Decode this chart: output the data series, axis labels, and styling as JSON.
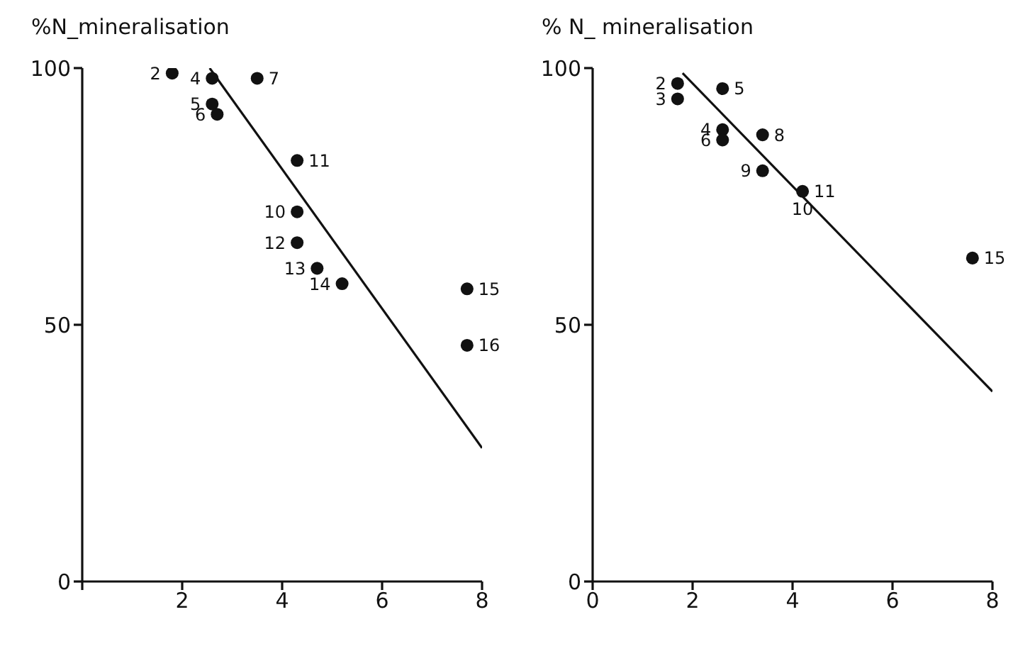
{
  "chart_data": [
    {
      "type": "scatter",
      "ylabel": "%N_mineralisation",
      "xlim": [
        0,
        8
      ],
      "ylim": [
        0,
        100
      ],
      "xticks": [
        {
          "value": 0,
          "label": null
        },
        2,
        4,
        6,
        8
      ],
      "yticks": [
        0,
        50,
        100
      ],
      "grid": false,
      "legend": false,
      "marker": "circle",
      "series": [
        {
          "color": "#111111",
          "x": [
            1.8,
            2.6,
            3.5,
            2.6,
            2.7,
            4.3,
            4.3,
            4.3,
            4.7,
            5.2,
            7.7,
            7.7
          ],
          "values": [
            99,
            98,
            98,
            93,
            91,
            82,
            72,
            66,
            61,
            58,
            57,
            46
          ]
        },
        {
          "type": "line",
          "color": "#111111",
          "line_style": "solid",
          "marker": "none",
          "x": [
            2.55,
            8
          ],
          "values": [
            100,
            26
          ]
        }
      ],
      "annotations": [
        {
          "text": "2",
          "x": 1.8,
          "y": 99
        },
        {
          "text": "4",
          "x": 2.6,
          "y": 98
        },
        {
          "text": "7",
          "x": 3.5,
          "y": 98
        },
        {
          "text": "5",
          "x": 2.6,
          "y": 93
        },
        {
          "text": "6",
          "x": 2.7,
          "y": 91
        },
        {
          "text": "11",
          "x": 4.3,
          "y": 82
        },
        {
          "text": "10",
          "x": 4.3,
          "y": 72
        },
        {
          "text": "12",
          "x": 4.3,
          "y": 66
        },
        {
          "text": "13",
          "x": 4.7,
          "y": 61
        },
        {
          "text": "14",
          "x": 5.2,
          "y": 58
        },
        {
          "text": "15",
          "x": 7.7,
          "y": 57
        },
        {
          "text": "16",
          "x": 7.7,
          "y": 46
        }
      ]
    },
    {
      "type": "scatter",
      "ylabel": "% N_ mineralisation",
      "xlim": [
        0,
        8
      ],
      "ylim": [
        0,
        100
      ],
      "xticks": [
        0,
        2,
        4,
        6,
        8
      ],
      "yticks": [
        0,
        50,
        100
      ],
      "grid": false,
      "legend": false,
      "marker": "circle",
      "series": [
        {
          "color": "#111111",
          "x": [
            1.7,
            1.7,
            2.6,
            2.6,
            2.6,
            3.4,
            3.4,
            4.2,
            7.6
          ],
          "values": [
            97,
            94,
            96,
            88,
            86,
            87,
            80,
            76,
            63
          ]
        },
        {
          "type": "line",
          "color": "#111111",
          "line_style": "solid",
          "marker": "none",
          "x": [
            1.8,
            8
          ],
          "values": [
            99,
            37
          ]
        }
      ],
      "annotations": [
        {
          "text": "2",
          "x": 1.7,
          "y": 97
        },
        {
          "text": "3",
          "x": 1.7,
          "y": 94
        },
        {
          "text": "5",
          "x": 2.6,
          "y": 96
        },
        {
          "text": "4",
          "x": 2.6,
          "y": 88
        },
        {
          "text": "6",
          "x": 2.6,
          "y": 86
        },
        {
          "text": "8",
          "x": 3.4,
          "y": 87
        },
        {
          "text": "9",
          "x": 3.4,
          "y": 80
        },
        {
          "text": "11",
          "x": 4.2,
          "y": 76
        },
        {
          "text": "10",
          "x": 4.2,
          "y": 76
        },
        {
          "text": "15",
          "x": 7.6,
          "y": 63
        }
      ]
    }
  ]
}
